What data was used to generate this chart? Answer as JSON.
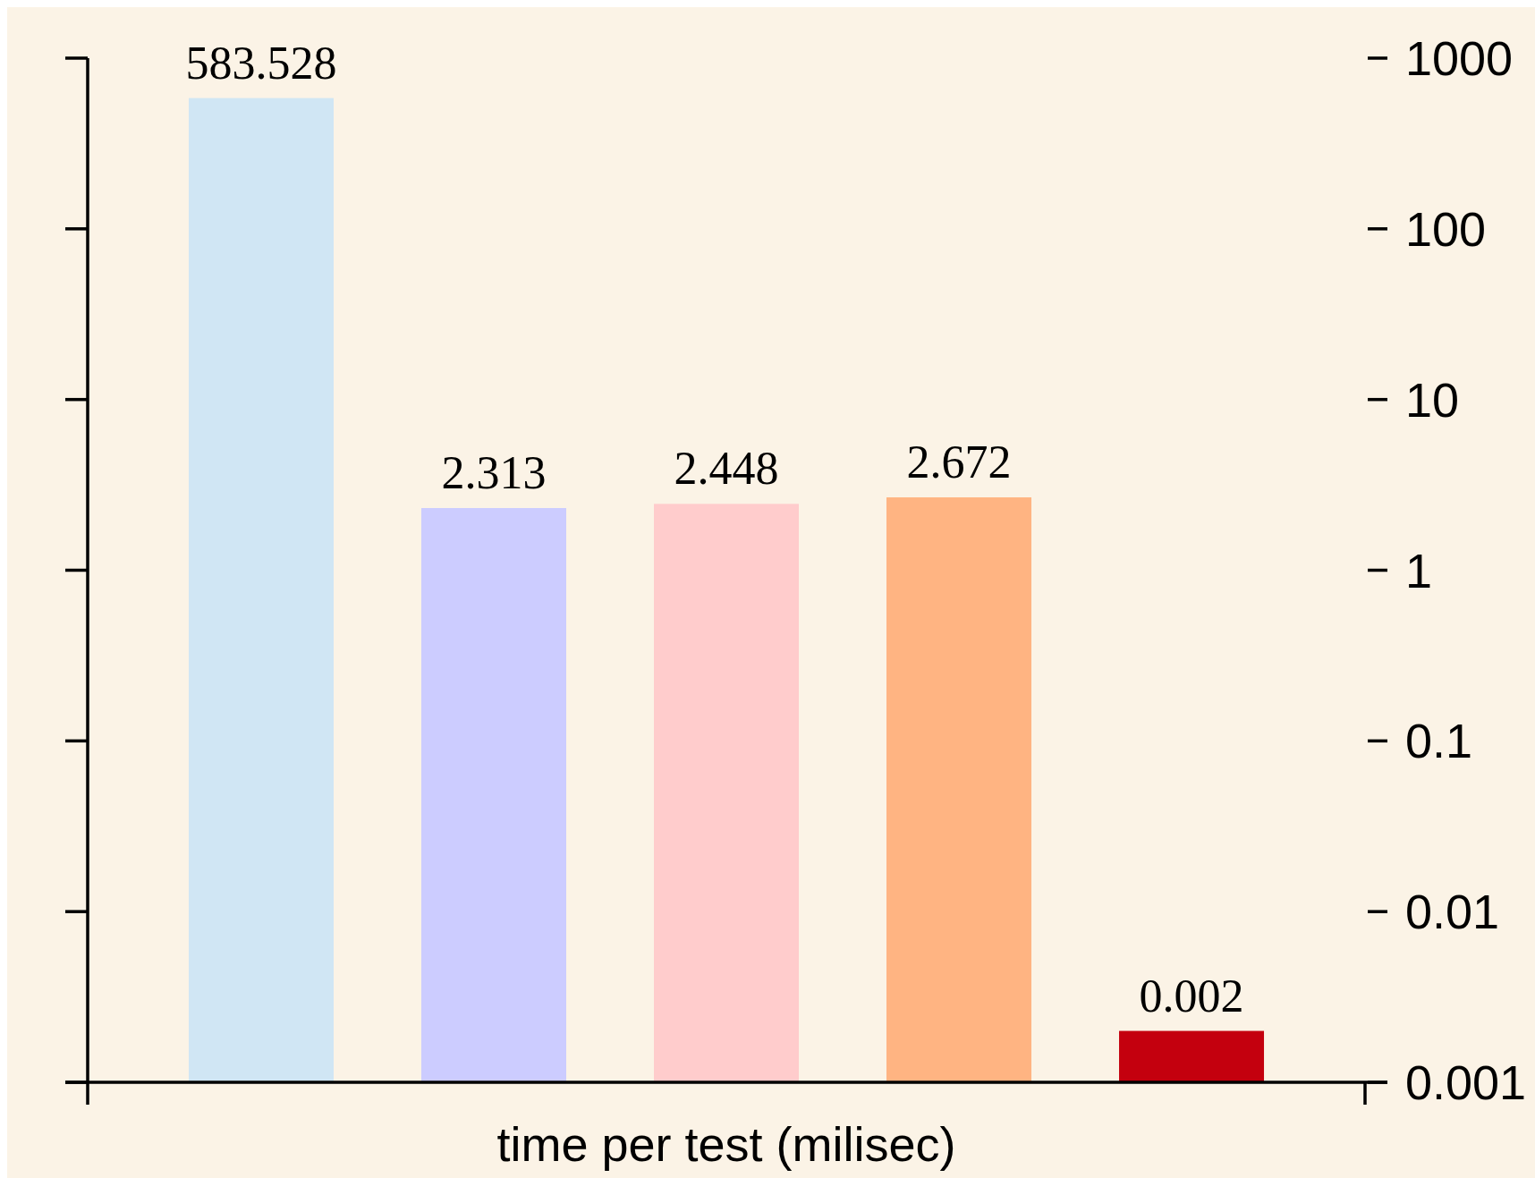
{
  "chart_data": {
    "type": "bar",
    "xlabel": "time per test (milisec)",
    "categories": [
      null,
      null,
      null,
      null,
      null
    ],
    "values": [
      583.528,
      2.313,
      2.448,
      2.672,
      0.002
    ],
    "colors": [
      "#d0e6f4",
      "#ccccff",
      "#ffcccc",
      "#ffb482",
      "#c4000e"
    ],
    "log": true,
    "ylim": [
      0.001,
      1000
    ],
    "yticks": [
      0.001,
      0.01,
      0.1,
      1,
      10,
      100,
      1000
    ],
    "data_labels": true,
    "grid": false
  }
}
